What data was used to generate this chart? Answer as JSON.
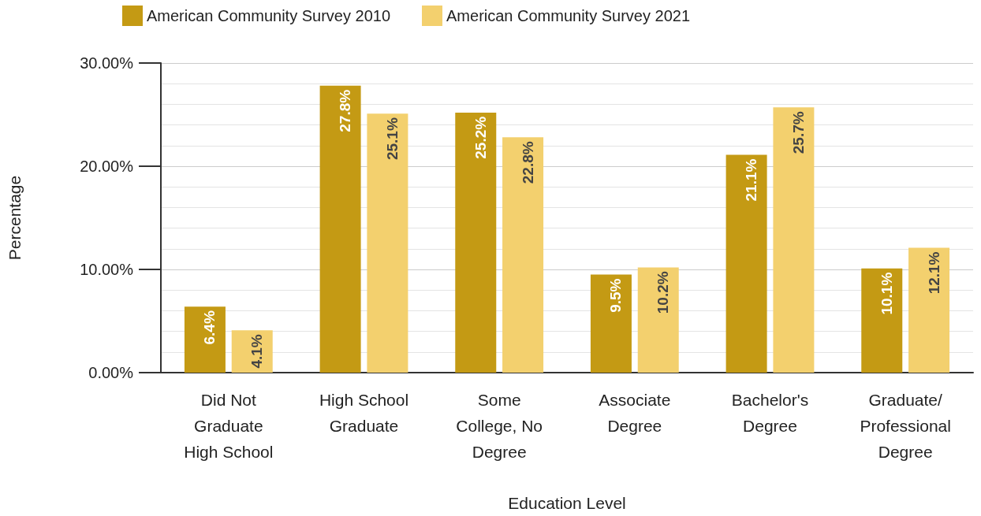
{
  "chart_data": {
    "type": "bar",
    "xlabel": "Education Level",
    "ylabel": "Percentage",
    "categories": [
      "Did Not\nGraduate\nHigh School",
      "High School\nGraduate",
      "Some\nCollege, No\nDegree",
      "Associate\nDegree",
      "Bachelor's\nDegree",
      "Graduate/\nProfessional\nDegree"
    ],
    "series": [
      {
        "name": "American Community Survey 2010",
        "color": "#c49a14",
        "values": [
          6.4,
          27.8,
          25.2,
          9.5,
          21.1,
          10.1
        ],
        "value_labels": [
          "6.4%",
          "27.8%",
          "25.2%",
          "9.5%",
          "21.1%",
          "10.1%"
        ]
      },
      {
        "name": "American Community Survey 2021",
        "color": "#f3d06e",
        "values": [
          4.1,
          25.1,
          22.8,
          10.2,
          25.7,
          12.1
        ],
        "value_labels": [
          "4.1%",
          "25.1%",
          "22.8%",
          "10.2%",
          "25.7%",
          "12.1%"
        ]
      }
    ],
    "ylim": [
      0,
      30
    ],
    "yticks": [
      {
        "value": 0,
        "label": "0.00%"
      },
      {
        "value": 10,
        "label": "10.00%"
      },
      {
        "value": 20,
        "label": "20.00%"
      },
      {
        "value": 30,
        "label": "30.00%"
      }
    ],
    "grid": true,
    "legend": "top"
  }
}
